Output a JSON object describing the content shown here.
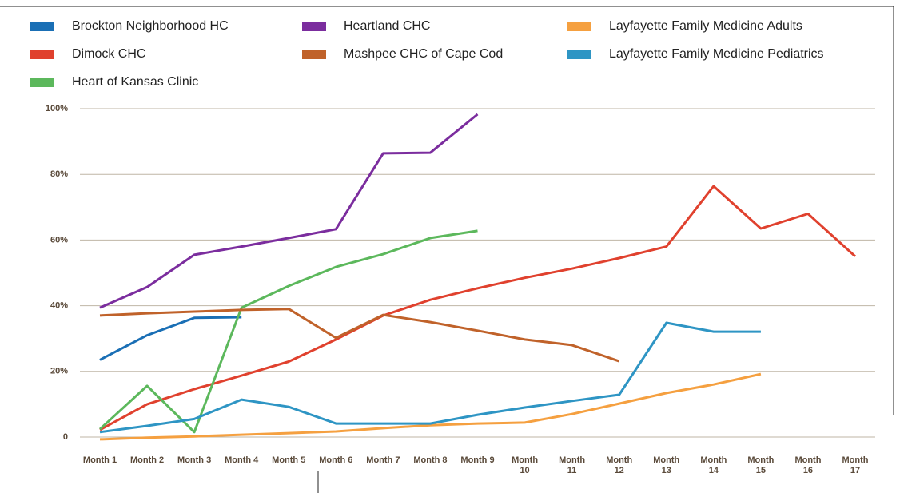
{
  "chart_data": {
    "type": "line",
    "categories": [
      "Month 1",
      "Month 2",
      "Month 3",
      "Month 4",
      "Month 5",
      "Month 6",
      "Month 7",
      "Month 8",
      "Month 9",
      "Month 10",
      "Month 11",
      "Month 12",
      "Month 13",
      "Month 14",
      "Month 15",
      "Month 16",
      "Month 17"
    ],
    "ylim": [
      0,
      100
    ],
    "yticks": [
      0,
      {
        "value": 20,
        "label": "20%"
      },
      {
        "value": 40,
        "label": "40%"
      },
      {
        "value": 60,
        "label": "60%"
      },
      {
        "value": 80,
        "label": "80%"
      },
      {
        "value": 100,
        "label": "100%"
      }
    ],
    "grid": true,
    "series": [
      {
        "name": "Brockton Neighborhood HC",
        "color": "#1a6fb5",
        "values": [
          23.5,
          31,
          36.3,
          36.5,
          null,
          null,
          null,
          null,
          null,
          null,
          null,
          null,
          null,
          null,
          null,
          null,
          null
        ]
      },
      {
        "name": "Dimock CHC",
        "color": "#e0412e",
        "values": [
          2.2,
          10,
          14.6,
          18.7,
          23,
          29.7,
          37,
          41.8,
          45.3,
          48.5,
          51.3,
          54.5,
          58,
          76.4,
          63.5,
          68,
          55
        ]
      },
      {
        "name": "Heart of Kansas Clinic",
        "color": "#5cb85c",
        "values": [
          2.4,
          15.6,
          1.5,
          39.4,
          46,
          51.8,
          55.7,
          60.6,
          62.8,
          null,
          null,
          null,
          null,
          null,
          null,
          null,
          null
        ]
      },
      {
        "name": "Heartland CHC",
        "color": "#7b2d9e",
        "values": [
          39.4,
          45.7,
          55.5,
          58,
          60.6,
          63.3,
          86.4,
          86.6,
          98.3,
          null,
          null,
          null,
          null,
          null,
          null,
          null,
          null
        ]
      },
      {
        "name": "Mashpee CHC of Cape Cod",
        "color": "#c0622a",
        "values": [
          37,
          37.7,
          38.2,
          38.7,
          39,
          30.2,
          37.2,
          35,
          32.4,
          29.7,
          28,
          23.1,
          null,
          null,
          null,
          null,
          null
        ]
      },
      {
        "name": "Layfayette Family Medicine Adults",
        "color": "#f5a040",
        "values": [
          -0.7,
          -0.2,
          0.2,
          0.7,
          1.2,
          1.7,
          2.7,
          3.6,
          4.1,
          4.4,
          7,
          10.2,
          13.4,
          16,
          19.2,
          null,
          null
        ]
      },
      {
        "name": "Layfayette Family Medicine Pediatrics",
        "color": "#2e95c4",
        "values": [
          1.5,
          3.4,
          5.5,
          11.4,
          9.2,
          4.1,
          4.1,
          4.1,
          6.8,
          9,
          11,
          12.9,
          34.8,
          32.1,
          32.1,
          null,
          null
        ]
      }
    ]
  }
}
